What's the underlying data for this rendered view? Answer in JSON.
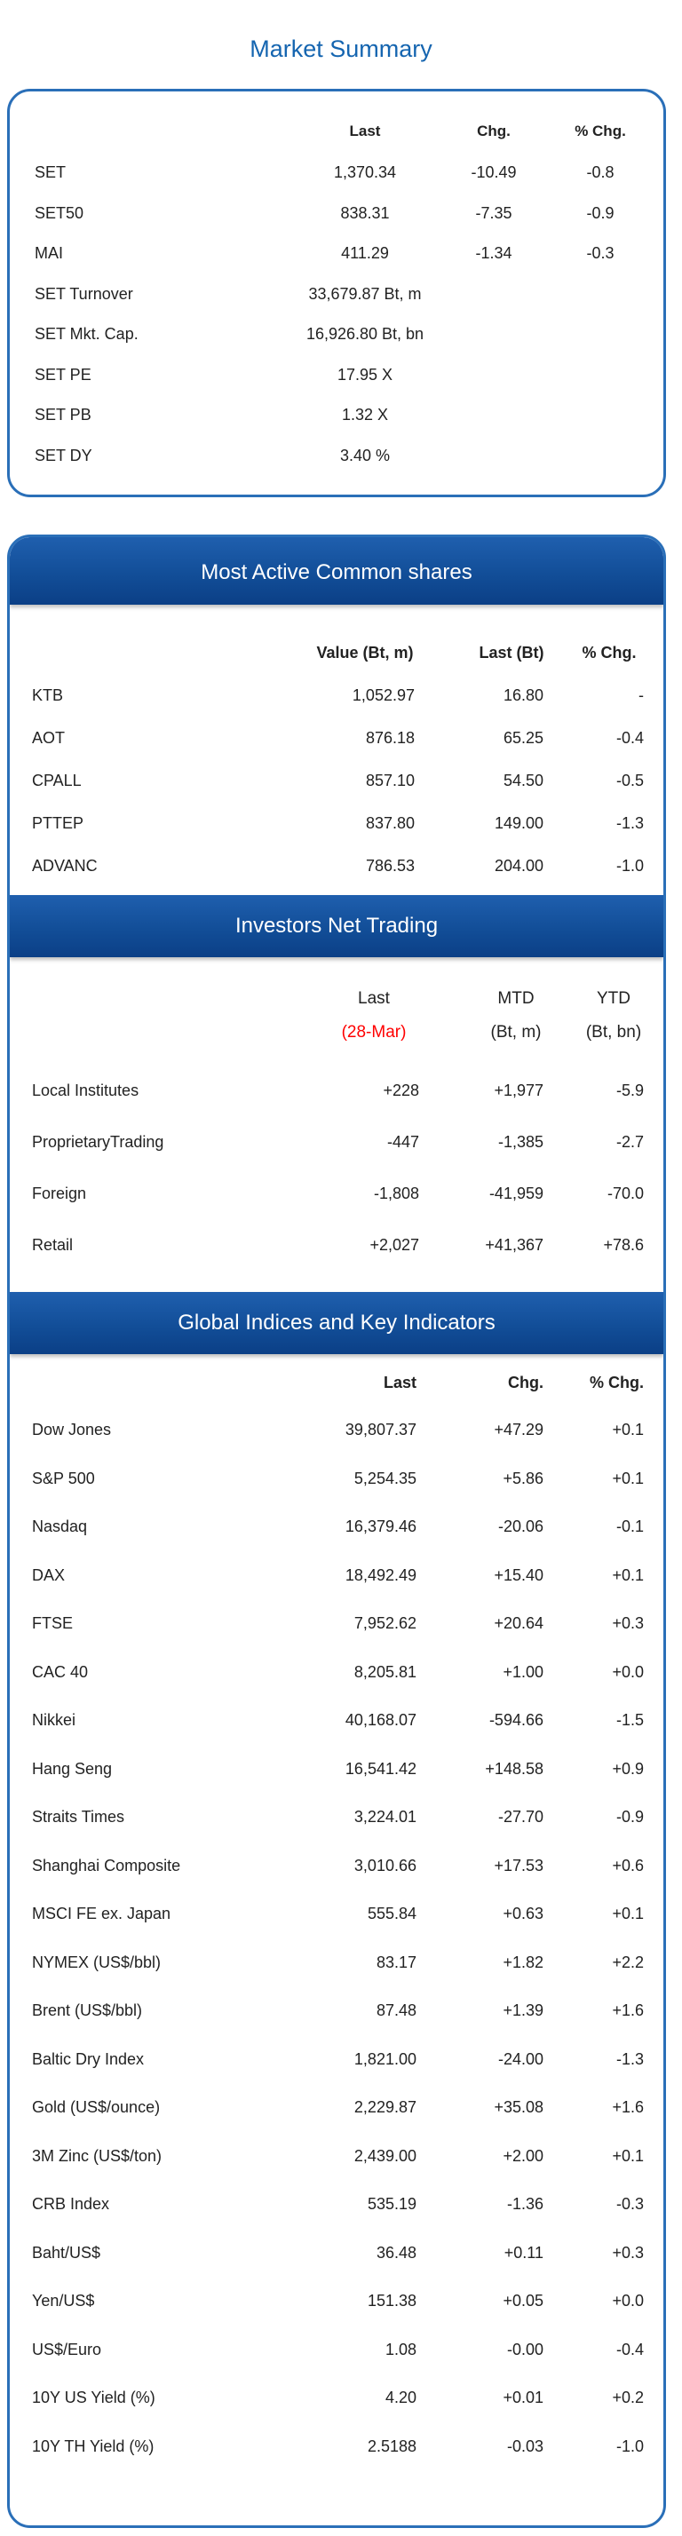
{
  "title": "Market Summary",
  "market_summary": {
    "headers": {
      "last": "Last",
      "chg": "Chg.",
      "pchg": "% Chg."
    },
    "rows": [
      {
        "label": "SET",
        "last": "1,370.34",
        "chg": "-10.49",
        "pchg": "-0.8"
      },
      {
        "label": "SET50",
        "last": "838.31",
        "chg": "-7.35",
        "pchg": "-0.9"
      },
      {
        "label": "MAI",
        "last": "411.29",
        "chg": "-1.34",
        "pchg": "-0.3"
      },
      {
        "label": "SET Turnover",
        "last": "33,679.87 Bt, m",
        "chg": "",
        "pchg": ""
      },
      {
        "label": "SET Mkt. Cap.",
        "last": "16,926.80 Bt, bn",
        "chg": "",
        "pchg": ""
      },
      {
        "label": "SET PE",
        "last": "17.95 X",
        "chg": "",
        "pchg": ""
      },
      {
        "label": "SET PB",
        "last": "1.32 X",
        "chg": "",
        "pchg": ""
      },
      {
        "label": "SET DY",
        "last": "3.40 %",
        "chg": "",
        "pchg": ""
      }
    ]
  },
  "most_active": {
    "title": "Most Active Common shares",
    "headers": {
      "value": "Value (Bt, m)",
      "last": "Last (Bt)",
      "pchg": "% Chg."
    },
    "rows": [
      {
        "label": "KTB",
        "value": "1,052.97",
        "last": "16.80",
        "pchg": "-"
      },
      {
        "label": "AOT",
        "value": "876.18",
        "last": "65.25",
        "pchg": "-0.4"
      },
      {
        "label": "CPALL",
        "value": "857.10",
        "last": "54.50",
        "pchg": "-0.5"
      },
      {
        "label": "PTTEP",
        "value": "837.80",
        "last": "149.00",
        "pchg": "-1.3"
      },
      {
        "label": "ADVANC",
        "value": "786.53",
        "last": "204.00",
        "pchg": "-1.0"
      }
    ]
  },
  "investors": {
    "title": "Investors Net Trading",
    "headers": {
      "last": "Last",
      "mtd": "MTD",
      "ytd": "YTD",
      "last_date": "(28-Mar)",
      "mtd_unit": "(Bt, m)",
      "ytd_unit": "(Bt, bn)"
    },
    "colors": {
      "date": "#ff0000"
    },
    "rows": [
      {
        "label": "Local Institutes",
        "last": "+228",
        "mtd": "+1,977",
        "ytd": "-5.9"
      },
      {
        "label": "ProprietaryTrading",
        "last": "-447",
        "mtd": "-1,385",
        "ytd": "-2.7"
      },
      {
        "label": "Foreign",
        "last": "-1,808",
        "mtd": "-41,959",
        "ytd": "-70.0"
      },
      {
        "label": "Retail",
        "last": "+2,027",
        "mtd": "+41,367",
        "ytd": "+78.6"
      }
    ]
  },
  "global": {
    "title": "Global Indices and Key Indicators",
    "headers": {
      "last": "Last",
      "chg": "Chg.",
      "pchg": "% Chg."
    },
    "rows": [
      {
        "label": "Dow Jones",
        "last": "39,807.37",
        "chg": "+47.29",
        "pchg": "+0.1"
      },
      {
        "label": "S&P 500",
        "last": "5,254.35",
        "chg": "+5.86",
        "pchg": "+0.1"
      },
      {
        "label": "Nasdaq",
        "last": "16,379.46",
        "chg": "-20.06",
        "pchg": "-0.1"
      },
      {
        "label": "DAX",
        "last": "18,492.49",
        "chg": "+15.40",
        "pchg": "+0.1"
      },
      {
        "label": "FTSE",
        "last": "7,952.62",
        "chg": "+20.64",
        "pchg": "+0.3"
      },
      {
        "label": "CAC 40",
        "last": "8,205.81",
        "chg": "+1.00",
        "pchg": "+0.0"
      },
      {
        "label": "Nikkei",
        "last": "40,168.07",
        "chg": "-594.66",
        "pchg": "-1.5"
      },
      {
        "label": "Hang Seng",
        "last": "16,541.42",
        "chg": "+148.58",
        "pchg": "+0.9"
      },
      {
        "label": "Straits Times",
        "last": "3,224.01",
        "chg": "-27.70",
        "pchg": "-0.9"
      },
      {
        "label": "Shanghai Composite",
        "last": "3,010.66",
        "chg": "+17.53",
        "pchg": "+0.6"
      },
      {
        "label": "MSCI FE ex. Japan",
        "last": "555.84",
        "chg": "+0.63",
        "pchg": "+0.1"
      },
      {
        "label": "NYMEX (US$/bbl)",
        "last": "83.17",
        "chg": "+1.82",
        "pchg": "+2.2"
      },
      {
        "label": "Brent (US$/bbl)",
        "last": "87.48",
        "chg": "+1.39",
        "pchg": "+1.6"
      },
      {
        "label": "Baltic Dry Index",
        "last": "1,821.00",
        "chg": "-24.00",
        "pchg": "-1.3"
      },
      {
        "label": "Gold (US$/ounce)",
        "last": "2,229.87",
        "chg": "+35.08",
        "pchg": "+1.6"
      },
      {
        "label": "3M Zinc (US$/ton)",
        "last": "2,439.00",
        "chg": "+2.00",
        "pchg": "+0.1"
      },
      {
        "label": "CRB Index",
        "last": "535.19",
        "chg": "-1.36",
        "pchg": "-0.3"
      },
      {
        "label": "Baht/US$",
        "last": "36.48",
        "chg": "+0.11",
        "pchg": "+0.3"
      },
      {
        "label": "Yen/US$",
        "last": "151.38",
        "chg": "+0.05",
        "pchg": "+0.0"
      },
      {
        "label": "US$/Euro",
        "last": "1.08",
        "chg": "-0.00",
        "pchg": "-0.4"
      },
      {
        "label": "10Y US Yield (%)",
        "last": "4.20",
        "chg": "+0.01",
        "pchg": "+0.2"
      },
      {
        "label": "10Y TH Yield (%)",
        "last": "2.5188",
        "chg": "-0.03",
        "pchg": "-1.0"
      }
    ]
  }
}
